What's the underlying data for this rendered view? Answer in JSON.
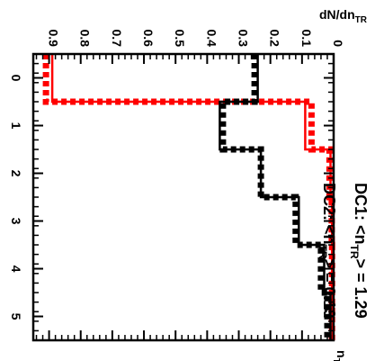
{
  "chart_data": {
    "type": "line",
    "orientation": "rotated-90-clockwise",
    "ylabel": "dN/dn",
    "ylabel_sub": "TR",
    "xlabel": "n",
    "xlabel_sub": "TR",
    "xlim": [
      -0.5,
      5.5
    ],
    "ylim": [
      0,
      0.95
    ],
    "x_ticks": [
      0,
      1,
      2,
      3,
      4,
      5
    ],
    "x_tick_labels": [
      "0",
      "1",
      "2",
      "3",
      "4",
      "5"
    ],
    "y_ticks": [
      0,
      0.1,
      0.2,
      0.3,
      0.4,
      0.5,
      0.6,
      0.7,
      0.8,
      0.9
    ],
    "y_tick_labels": [
      "0",
      "0.1",
      "0.2",
      "0.3",
      "0.4",
      "0.5",
      "0.6",
      "0.7",
      "0.8",
      "0.9"
    ],
    "bin_edges": [
      -0.5,
      0.5,
      1.5,
      2.5,
      3.5,
      4.5,
      5.5
    ],
    "series": [
      {
        "color": "#ff0000",
        "style": "solid",
        "values": [
          0.89,
          0.09,
          0.01,
          0.005,
          0.005,
          0.003
        ]
      },
      {
        "color": "#ff0000",
        "style": "dashed",
        "values": [
          0.91,
          0.07,
          0.013,
          0.006,
          0.005,
          0.005
        ]
      },
      {
        "color": "#000000",
        "style": "solid",
        "values": [
          0.24,
          0.36,
          0.23,
          0.11,
          0.03,
          0.01
        ]
      },
      {
        "color": "#000000",
        "style": "dashed",
        "values": [
          0.25,
          0.35,
          0.23,
          0.12,
          0.04,
          0.02
        ]
      }
    ],
    "annotations": [
      {
        "text_pre": "DC1: <n",
        "sub": "TR",
        "text_post": "> = 1.29"
      },
      {
        "text_pre": "DC2: <n",
        "sub": "TR",
        "text_post": "> = 0.13"
      }
    ]
  }
}
